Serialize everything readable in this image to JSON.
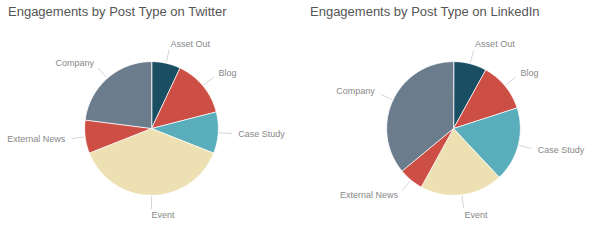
{
  "chart_data": [
    {
      "type": "pie",
      "title": "Engagements by Post Type on Twitter",
      "categories": [
        "Asset Out",
        "Blog",
        "Case Study",
        "Event",
        "External News",
        "Company"
      ],
      "values": [
        7,
        14,
        10,
        38,
        8,
        23
      ],
      "colors": [
        "#1a4e62",
        "#cc4e44",
        "#5aadba",
        "#ede0b2",
        "#cc4e44",
        "#6b7c8c"
      ]
    },
    {
      "type": "pie",
      "title": "Engagements by Post Type on LinkedIn",
      "categories": [
        "Asset Out",
        "Blog",
        "Case Study",
        "Event",
        "External News",
        "Company"
      ],
      "values": [
        8,
        12,
        18,
        20,
        6,
        36
      ],
      "colors": [
        "#1a4e62",
        "#cc4e44",
        "#5aadba",
        "#ede0b2",
        "#cc4e44",
        "#6b7c8c"
      ]
    }
  ]
}
